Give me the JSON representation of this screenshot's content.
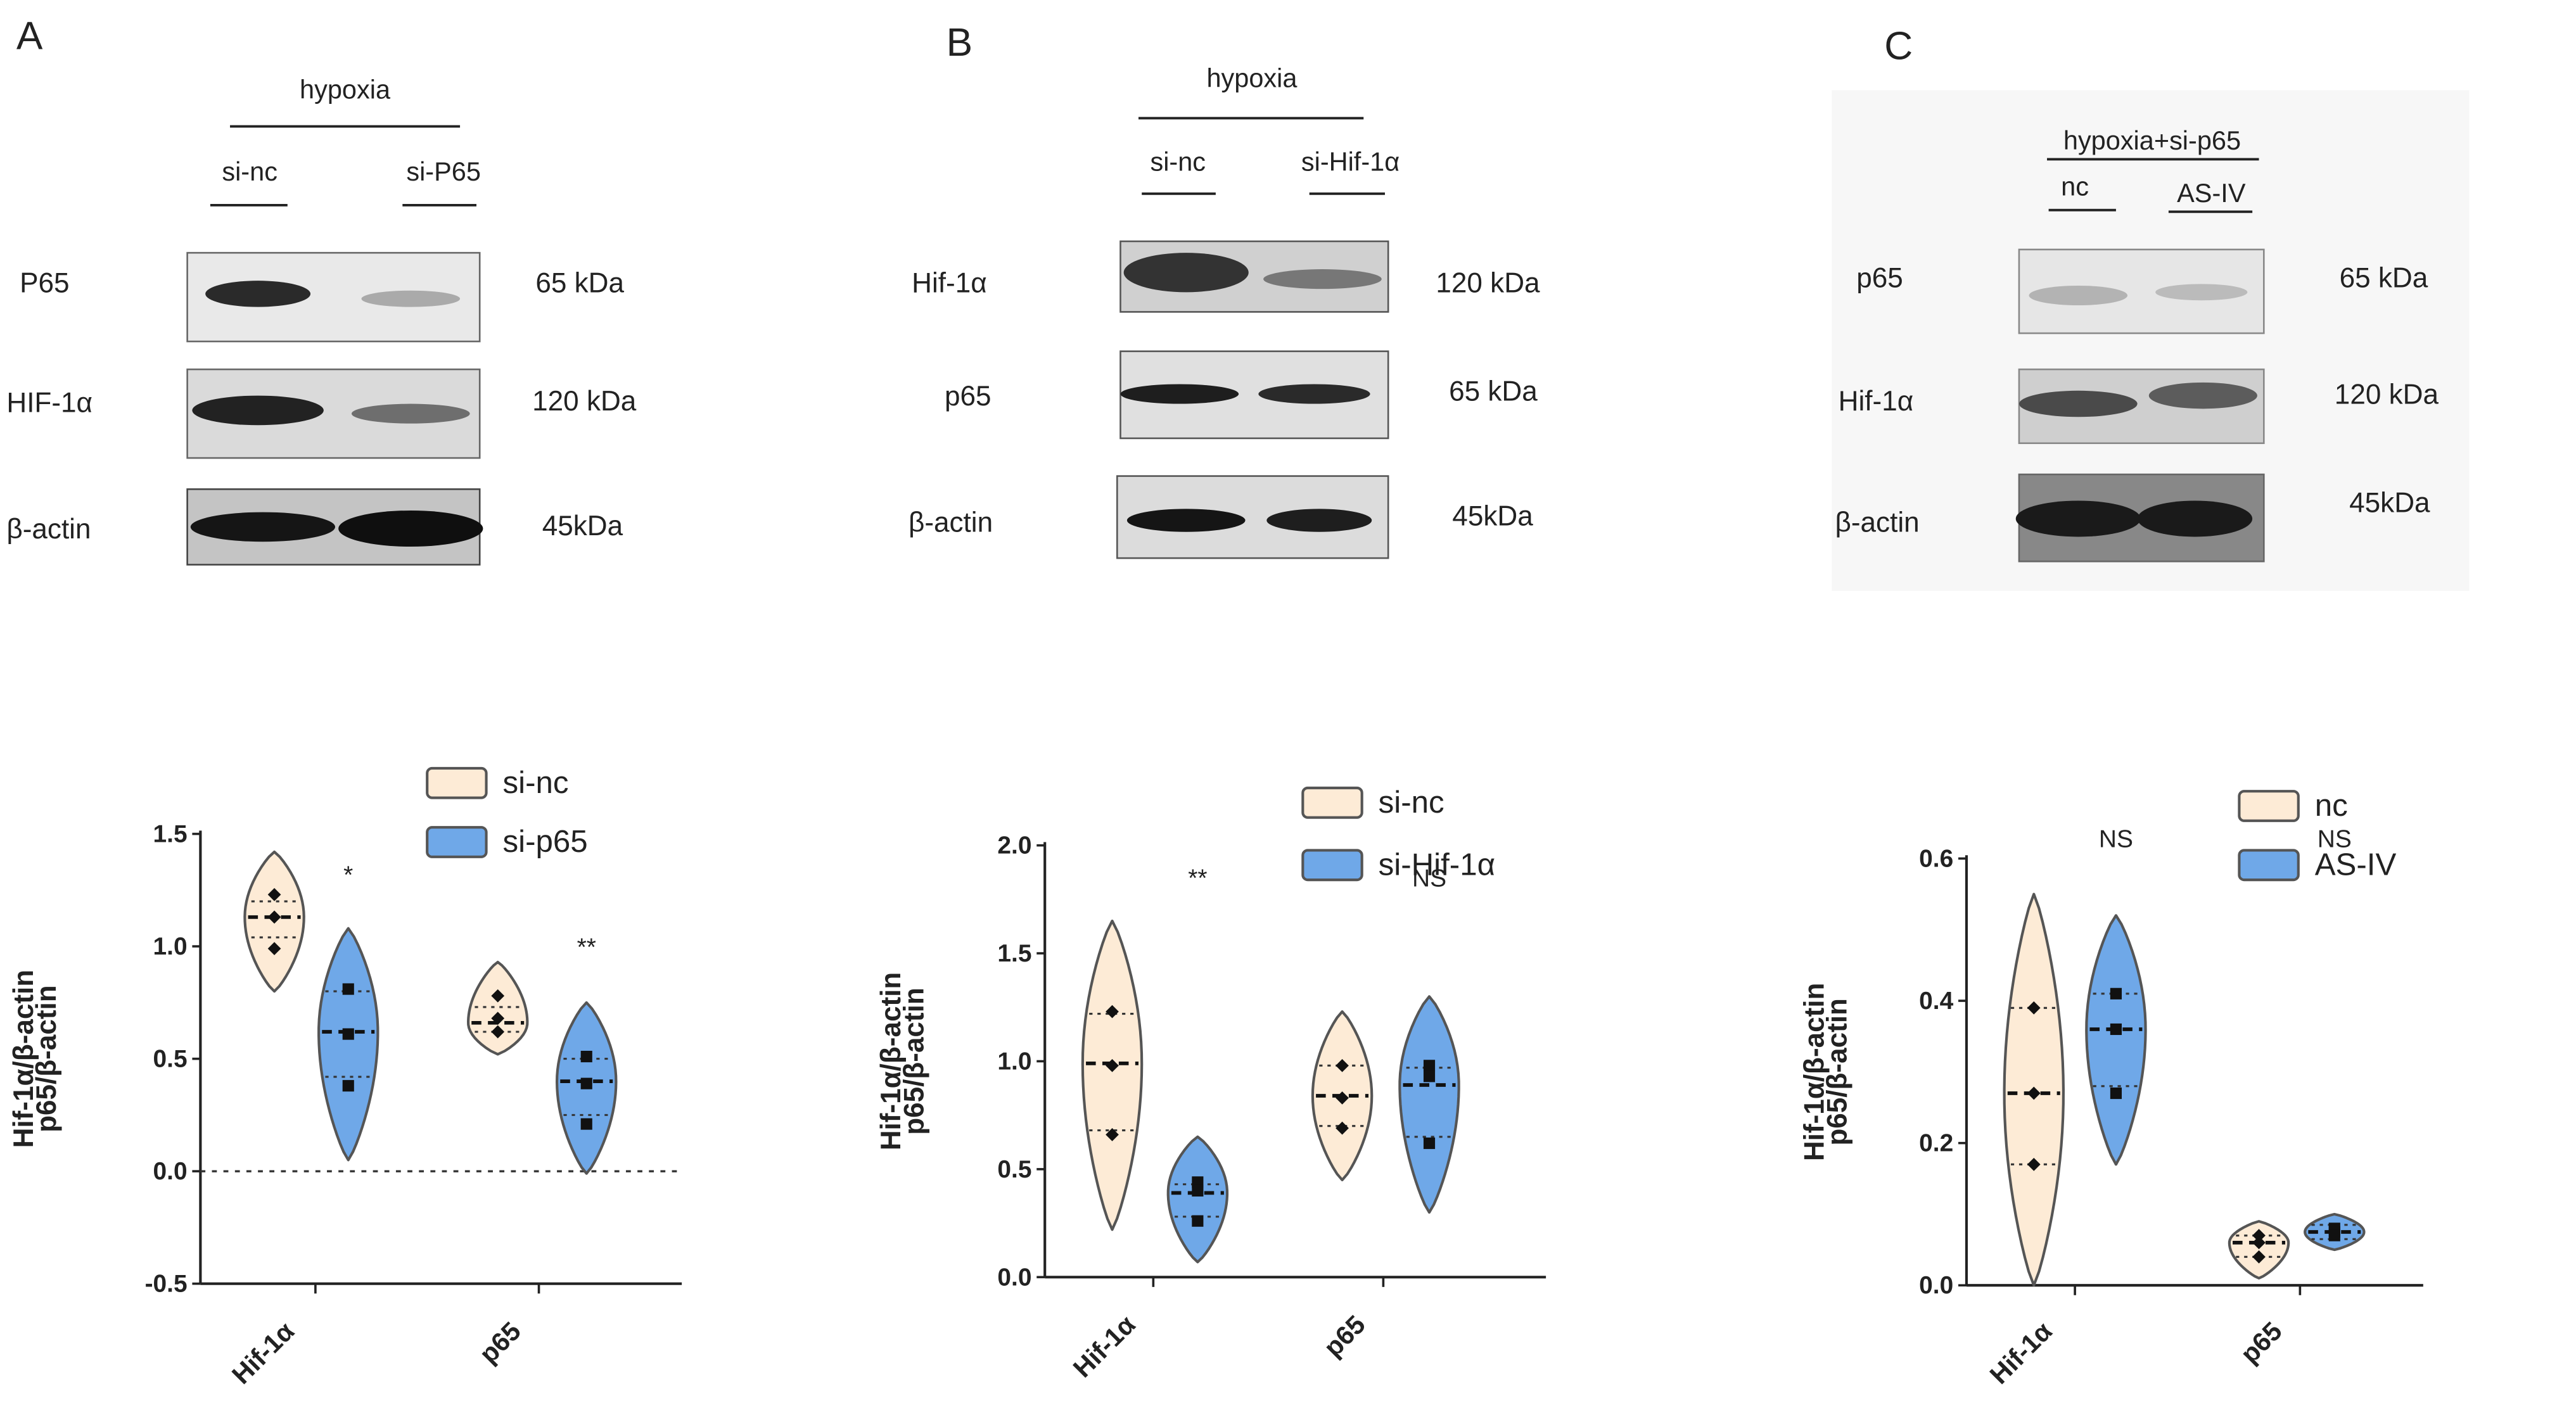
{
  "panels": [
    {
      "letter": "A",
      "blot": {
        "header": "hypoxia",
        "lanes": [
          "si-nc",
          "si-P65"
        ],
        "rows": [
          {
            "label": "P65",
            "kda": "65 kDa"
          },
          {
            "label": "HIF-1α",
            "kda": "120 kDa"
          },
          {
            "label": "β-actin",
            "kda": "45kDa"
          }
        ]
      }
    },
    {
      "letter": "B",
      "blot": {
        "header": "hypoxia",
        "lanes": [
          "si-nc",
          "si-Hif-1α"
        ],
        "rows": [
          {
            "label": "Hif-1α",
            "kda": "120 kDa"
          },
          {
            "label": "p65",
            "kda": "65 kDa"
          },
          {
            "label": "β-actin",
            "kda": "45kDa"
          }
        ]
      }
    },
    {
      "letter": "C",
      "blot": {
        "header": "hypoxia+si-p65",
        "lanes": [
          "nc",
          "AS-IV"
        ],
        "rows": [
          {
            "label": "p65",
            "kda": "65 kDa"
          },
          {
            "label": "Hif-1α",
            "kda": "120 kDa"
          },
          {
            "label": "β-actin",
            "kda": "45kDa"
          }
        ]
      }
    }
  ],
  "chart_data": [
    {
      "type": "violin",
      "categories": [
        "Hif-1α",
        "p65"
      ],
      "ylabel_lines": [
        "Hif-1α/β-actin",
        "p65/β-actin"
      ],
      "ylim": [
        -0.5,
        1.5
      ],
      "yticks": [
        "-0.5",
        "0.0",
        "0.5",
        "1.0",
        "1.5"
      ],
      "zero_line": true,
      "legend_position": "top-right",
      "significance": [
        "*",
        "**"
      ],
      "series": [
        {
          "name": "si-nc",
          "color": "#fdebd6",
          "groups": [
            {
              "points": [
                1.23,
                1.13,
                0.99
              ],
              "median": 1.13,
              "quartiles": [
                1.04,
                1.2
              ],
              "range": [
                0.8,
                1.42
              ]
            },
            {
              "points": [
                0.78,
                0.68,
                0.62
              ],
              "median": 0.66,
              "quartiles": [
                0.62,
                0.73
              ],
              "range": [
                0.52,
                0.93
              ]
            }
          ]
        },
        {
          "name": "si-p65",
          "color": "#6fa8e8",
          "groups": [
            {
              "points": [
                0.81,
                0.61,
                0.38
              ],
              "median": 0.62,
              "quartiles": [
                0.42,
                0.8
              ],
              "range": [
                0.05,
                1.08
              ]
            },
            {
              "points": [
                0.51,
                0.39,
                0.21
              ],
              "median": 0.4,
              "quartiles": [
                0.25,
                0.5
              ],
              "range": [
                -0.01,
                0.75
              ]
            }
          ]
        }
      ]
    },
    {
      "type": "violin",
      "categories": [
        "Hif-1α",
        "p65"
      ],
      "ylabel_lines": [
        "Hif-1α/β-actin",
        "p65/β-actin"
      ],
      "ylim": [
        0.0,
        2.0
      ],
      "yticks": [
        "0.0",
        "0.5",
        "1.0",
        "1.5",
        "2.0"
      ],
      "zero_line": false,
      "legend_position": "top-right",
      "significance": [
        "**",
        "NS"
      ],
      "series": [
        {
          "name": "si-nc",
          "color": "#fdebd6",
          "groups": [
            {
              "points": [
                1.23,
                0.98,
                0.66
              ],
              "median": 0.99,
              "quartiles": [
                0.68,
                1.22
              ],
              "range": [
                0.22,
                1.65
              ]
            },
            {
              "points": [
                0.98,
                0.83,
                0.69
              ],
              "median": 0.84,
              "quartiles": [
                0.7,
                0.98
              ],
              "range": [
                0.45,
                1.23
              ]
            }
          ]
        },
        {
          "name": "si-Hif-1α",
          "color": "#6fa8e8",
          "groups": [
            {
              "points": [
                0.44,
                0.4,
                0.26
              ],
              "median": 0.39,
              "quartiles": [
                0.28,
                0.43
              ],
              "range": [
                0.07,
                0.65
              ]
            },
            {
              "points": [
                0.98,
                0.93,
                0.62
              ],
              "median": 0.89,
              "quartiles": [
                0.65,
                0.97
              ],
              "range": [
                0.3,
                1.3
              ]
            }
          ]
        }
      ]
    },
    {
      "type": "violin",
      "categories": [
        "Hif-1α",
        "p65"
      ],
      "ylabel_lines": [
        "Hif-1α/β-actin",
        "p65/β-actin"
      ],
      "ylim": [
        0.0,
        0.6
      ],
      "yticks": [
        "0.0",
        "0.2",
        "0.4",
        "0.6"
      ],
      "zero_line": false,
      "legend_position": "top-right",
      "significance": [
        "NS",
        "NS"
      ],
      "series": [
        {
          "name": "nc",
          "color": "#fdebd6",
          "groups": [
            {
              "points": [
                0.39,
                0.27,
                0.17
              ],
              "median": 0.27,
              "quartiles": [
                0.17,
                0.39
              ],
              "range": [
                0.0,
                0.55
              ]
            },
            {
              "points": [
                0.07,
                0.06,
                0.04
              ],
              "median": 0.06,
              "quartiles": [
                0.04,
                0.07
              ],
              "range": [
                0.01,
                0.09
              ]
            }
          ]
        },
        {
          "name": "AS-IV",
          "color": "#6fa8e8",
          "groups": [
            {
              "points": [
                0.41,
                0.36,
                0.27
              ],
              "median": 0.36,
              "quartiles": [
                0.28,
                0.41
              ],
              "range": [
                0.17,
                0.52
              ]
            },
            {
              "points": [
                0.08,
                0.075,
                0.07
              ],
              "median": 0.075,
              "quartiles": [
                0.065,
                0.085
              ],
              "range": [
                0.05,
                0.1
              ]
            }
          ]
        }
      ]
    }
  ]
}
